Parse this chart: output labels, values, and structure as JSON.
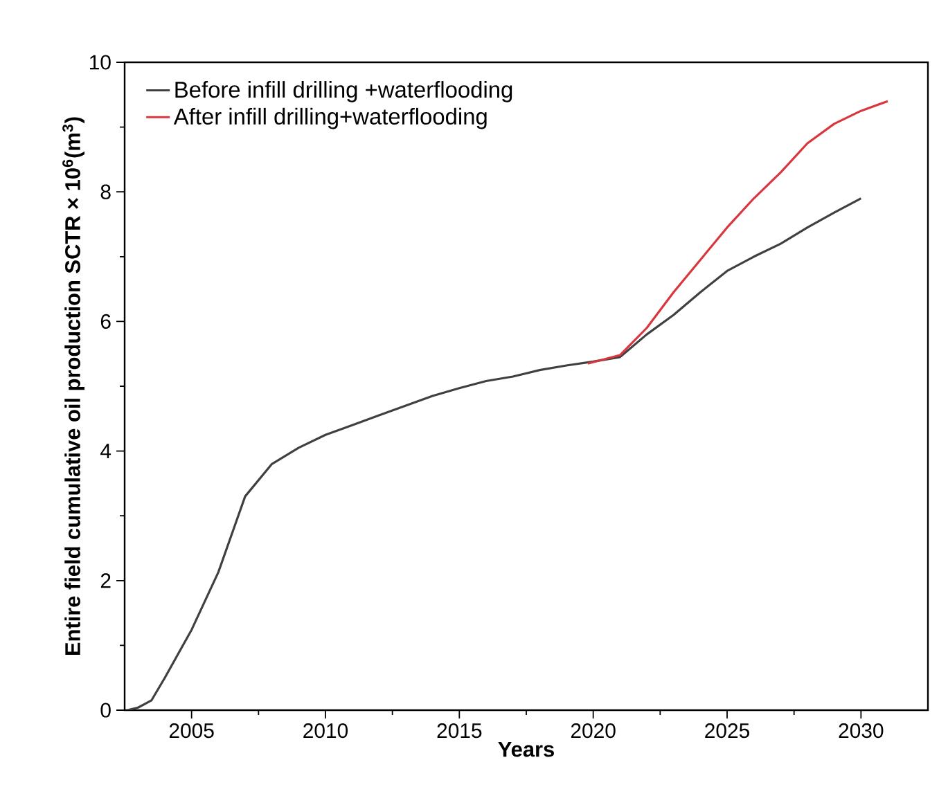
{
  "chart_data": {
    "type": "line",
    "xlabel": "Years",
    "ylabel": "Entire field cumulative oil production SCTR × 10$^{6}$(m$^{3}$)",
    "xlim": [
      2002.5,
      2032.5
    ],
    "ylim": [
      0,
      10
    ],
    "xticks": [
      2005,
      2010,
      2015,
      2020,
      2025,
      2030
    ],
    "yticks": [
      0,
      2,
      4,
      6,
      8,
      10
    ],
    "legend": "top left",
    "grid": false,
    "line_style": "solid",
    "marker": "none",
    "series": [
      {
        "name": "Before infill drilling +waterflooding",
        "color": "#404040",
        "x": [
          2002.6,
          2003,
          2003.5,
          2004,
          2005,
          2006,
          2007,
          2008,
          2009,
          2010,
          2011,
          2012,
          2013,
          2014,
          2015,
          2016,
          2017,
          2018,
          2019,
          2020,
          2021,
          2022,
          2023,
          2024,
          2025,
          2026,
          2027,
          2028,
          2029,
          2030
        ],
        "values": [
          0.0,
          0.04,
          0.15,
          0.5,
          1.24,
          2.13,
          3.3,
          3.8,
          4.05,
          4.25,
          4.4,
          4.55,
          4.7,
          4.85,
          4.97,
          5.08,
          5.15,
          5.25,
          5.32,
          5.38,
          5.45,
          5.8,
          6.1,
          6.45,
          6.78,
          7.0,
          7.2,
          7.45,
          7.68,
          7.9
        ]
      },
      {
        "name": "After infill drilling+waterflooding",
        "color": "#d9363e",
        "x": [
          2019.8,
          2021,
          2022,
          2023,
          2024,
          2025,
          2026,
          2027,
          2028,
          2029,
          2030,
          2031
        ],
        "values": [
          5.35,
          5.48,
          5.9,
          6.45,
          6.95,
          7.45,
          7.9,
          8.3,
          8.75,
          9.05,
          9.25,
          9.4
        ]
      }
    ]
  }
}
